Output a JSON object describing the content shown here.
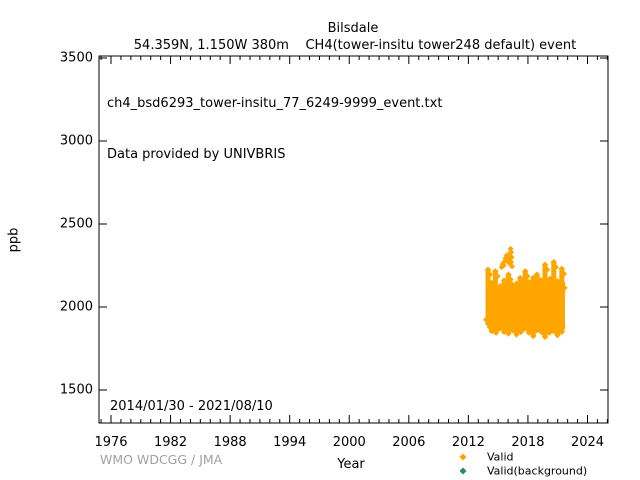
{
  "header": {
    "title": "Bilsdale",
    "subtitle": "54.359N, 1.150W 380m    CH4(tower-insitu tower248 default) event"
  },
  "annotations": {
    "dataset_file": "ch4_bsd6293_tower-insitu_77_6249-9999_event.txt",
    "provider": "Data provided by UNIVBRIS",
    "date_range": "2014/01/30 - 2021/08/10",
    "credit": "WMO WDCGG / JMA"
  },
  "legend": {
    "items": [
      {
        "label": "Valid",
        "color": "#ffa500",
        "marker": "diamond"
      },
      {
        "label": "Valid(background)",
        "color": "#2e8b57",
        "marker": "diamond"
      }
    ]
  },
  "chart_data": {
    "type": "scatter",
    "title": "Bilsdale",
    "subtitle": "54.359N, 1.150W 380m  CH4(tower-insitu tower248 default) event",
    "xlabel": "Year",
    "ylabel": "ppb",
    "xlim": [
      1974.8,
      2026.1
    ],
    "ylim": [
      1300,
      3510
    ],
    "x_ticks": [
      1976,
      1982,
      1988,
      1994,
      2000,
      2006,
      2012,
      2018,
      2024
    ],
    "x_minor_tick_interval": 1,
    "y_ticks": [
      1500,
      2000,
      2500,
      3000,
      3500
    ],
    "grid": false,
    "legend_position": "below-bottom-right",
    "series": [
      {
        "name": "Valid",
        "color": "#ffa500",
        "marker": "diamond",
        "coverage": "2014/01/30 - 2021/08/10",
        "band": {
          "description": "dense cluster of in-situ CH4 event data; per-column top/bottom envelope in ppb",
          "years": [
            2014.1,
            2014.35,
            2014.6,
            2014.85,
            2015.1,
            2015.35,
            2015.6,
            2015.85,
            2016.1,
            2016.35,
            2016.6,
            2016.85,
            2017.1,
            2017.35,
            2017.6,
            2017.85,
            2018.1,
            2018.35,
            2018.6,
            2018.85,
            2019.1,
            2019.35,
            2019.6,
            2019.85,
            2020.1,
            2020.35,
            2020.6,
            2020.85,
            2021.1,
            2021.35,
            2021.6
          ],
          "top": [
            2225,
            2145,
            2215,
            2105,
            2085,
            2125,
            2160,
            2105,
            2195,
            2135,
            2090,
            2140,
            2175,
            2120,
            2155,
            2215,
            2150,
            2115,
            2175,
            2195,
            2105,
            2160,
            2255,
            2150,
            2115,
            2170,
            2270,
            2155,
            2130,
            2230,
            2145
          ],
          "bottom": [
            1900,
            1855,
            1880,
            1845,
            1870,
            1895,
            1850,
            1875,
            1840,
            1885,
            1860,
            1835,
            1880,
            1850,
            1870,
            1890,
            1845,
            1865,
            1825,
            1860,
            1885,
            1850,
            1820,
            1865,
            1845,
            1880,
            1855,
            1830,
            1870,
            1850,
            1875
          ]
        },
        "outliers": [
          [
            2015.35,
            2240
          ],
          [
            2015.45,
            2258
          ],
          [
            2015.55,
            2250
          ],
          [
            2015.65,
            2275
          ],
          [
            2015.75,
            2295
          ],
          [
            2015.85,
            2310
          ],
          [
            2015.95,
            2290
          ],
          [
            2016.1,
            2265
          ],
          [
            2016.15,
            2295
          ],
          [
            2016.2,
            2325
          ],
          [
            2016.25,
            2350
          ],
          [
            2016.3,
            2330
          ],
          [
            2016.35,
            2300
          ],
          [
            2016.3,
            2270
          ],
          [
            2016.4,
            2245
          ]
        ]
      },
      {
        "name": "Valid(background)",
        "color": "#2e8b57",
        "marker": "diamond",
        "points": []
      }
    ]
  }
}
